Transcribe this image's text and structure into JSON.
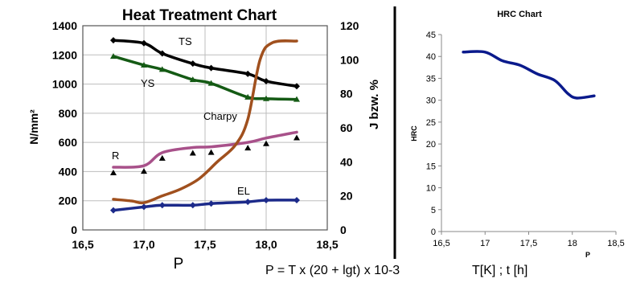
{
  "chart_data": [
    {
      "type": "line",
      "title": "Heat Treatment Chart",
      "xlabel": "P",
      "ylabel": "N/mm²",
      "y2label": "J bzw. %",
      "xlim": [
        16.5,
        18.5
      ],
      "ylim": [
        0,
        1400
      ],
      "y2lim": [
        0,
        120
      ],
      "x_ticks": [
        "16,5",
        "17,0",
        "17,5",
        "18,0",
        "18,5"
      ],
      "y_ticks": [
        "0",
        "200",
        "400",
        "600",
        "800",
        "1000",
        "1200",
        "1400"
      ],
      "y2_ticks": [
        "0",
        "20",
        "40",
        "60",
        "80",
        "100",
        "120"
      ],
      "grid": true,
      "series": [
        {
          "name": "TS",
          "axis": "left",
          "color": "#000000",
          "marker": "diamond",
          "x": [
            16.75,
            17.0,
            17.15,
            17.4,
            17.55,
            17.85,
            18.0,
            18.25
          ],
          "y": [
            1300,
            1280,
            1210,
            1140,
            1110,
            1070,
            1020,
            985
          ]
        },
        {
          "name": "YS",
          "axis": "left",
          "color": "#145a14",
          "marker": "triangle",
          "x": [
            16.75,
            17.0,
            17.15,
            17.4,
            17.55,
            17.85,
            18.0,
            18.25
          ],
          "y": [
            1190,
            1130,
            1100,
            1030,
            1005,
            910,
            900,
            895
          ]
        },
        {
          "name": "R",
          "axis": "left",
          "color": "#a8518a",
          "marker": "triangle",
          "x": [
            16.75,
            17.0,
            17.15,
            17.4,
            17.55,
            17.85,
            18.0,
            18.25
          ],
          "y": [
            430,
            440,
            530,
            565,
            570,
            600,
            630,
            670
          ]
        },
        {
          "name": "Charpy",
          "axis": "right",
          "color": "#a0501e",
          "marker": "none",
          "x": [
            16.75,
            16.9,
            17.0,
            17.15,
            17.3,
            17.45,
            17.6,
            17.75,
            17.85,
            17.95,
            18.05,
            18.25
          ],
          "y": [
            18,
            17,
            16,
            20,
            24,
            30,
            40,
            50,
            65,
            100,
            110,
            111
          ]
        },
        {
          "name": "EL",
          "axis": "right",
          "color": "#1c2a8a",
          "marker": "diamond",
          "x": [
            16.75,
            17.0,
            17.15,
            17.4,
            17.55,
            17.85,
            18.0,
            18.25
          ],
          "y": [
            11.5,
            13.5,
            14.5,
            14.5,
            15.5,
            16.5,
            17.5,
            17.5
          ]
        }
      ],
      "labels": {
        "ts": "TS",
        "ys": "YS",
        "charpy": "Charpy",
        "r": "R",
        "el": "EL"
      }
    },
    {
      "type": "line",
      "title": "HRC Chart",
      "xlabel": "P",
      "ylabel": "HRC",
      "xlim": [
        16.5,
        18.5
      ],
      "ylim": [
        0,
        45
      ],
      "x_ticks": [
        "16,5",
        "17",
        "17,5",
        "18",
        "18,5"
      ],
      "y_ticks": [
        "0",
        "5",
        "10",
        "15",
        "20",
        "25",
        "30",
        "35",
        "40",
        "45"
      ],
      "grid": false,
      "series": [
        {
          "name": "HRC",
          "color": "#0a1a8c",
          "x": [
            16.75,
            17.0,
            17.2,
            17.4,
            17.6,
            17.8,
            17.95,
            18.05,
            18.25
          ],
          "y": [
            41,
            41,
            39,
            38,
            36,
            34.5,
            31.5,
            30.5,
            31
          ]
        }
      ]
    }
  ],
  "formula": "P = T x (20 + lgt) x 10-3",
  "formula_units": "T[K] ; t [h]"
}
